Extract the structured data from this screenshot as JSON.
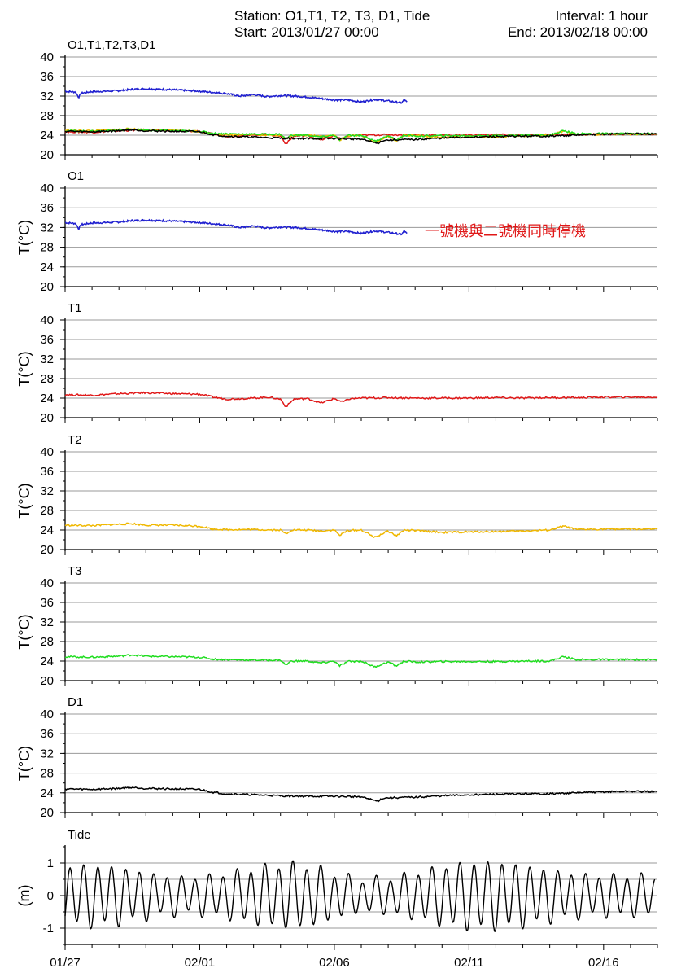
{
  "header": {
    "station": "Station: O1,T1, T2, T3, D1, Tide",
    "interval": "Interval: 1 hour",
    "start": "Start: 2013/01/27 00:00",
    "end": "End: 2013/02/18 00:00"
  },
  "annotation": "一號機與二號機同時停機",
  "x_tick_labels": [
    "01/27",
    "02/01",
    "02/06",
    "02/11",
    "02/16"
  ],
  "x_tick_days": [
    0,
    5,
    10,
    15,
    20
  ],
  "x_range_days": [
    0,
    22
  ],
  "colors": {
    "O1": "#2020d0",
    "T1": "#e01818",
    "T2": "#f0b800",
    "T3": "#20dd20",
    "D1": "#000000",
    "Tide": "#000000",
    "grid": "#9a9a9a",
    "annotation": "#e01818"
  },
  "chart_data": [
    {
      "type": "line",
      "title": "O1,T1,T2,T3,D1",
      "ylabel": "",
      "ylim": [
        20,
        40
      ],
      "yticks": [
        20,
        24,
        28,
        32,
        36,
        40
      ],
      "series": [
        {
          "key": "O1",
          "x": [
            0,
            0.4,
            0.5,
            0.6,
            1,
            2,
            2.5,
            3,
            4,
            5,
            6,
            6.5,
            7,
            7.5,
            8,
            8.5,
            9,
            9.5,
            10,
            10.5,
            11,
            11.5,
            12,
            12.5,
            12.6,
            12.7
          ],
          "y": [
            33,
            32.8,
            31.7,
            32.6,
            32.9,
            33.1,
            33.4,
            33.5,
            33.3,
            33,
            32.5,
            32,
            32.3,
            31.9,
            32.1,
            32,
            31.8,
            31.5,
            31.2,
            31.2,
            30.8,
            31.3,
            31,
            30.6,
            31.3,
            30.7
          ]
        },
        {
          "key": "T1",
          "x": [
            0,
            1,
            2,
            3,
            4,
            5,
            5.5,
            6,
            7,
            7.5,
            8,
            8.2,
            8.5,
            9,
            9.5,
            10,
            10.3,
            10.6,
            11,
            12,
            13,
            14,
            15,
            16,
            17,
            18,
            19,
            20,
            21,
            22
          ],
          "y": [
            24.7,
            24.6,
            24.9,
            25.1,
            24.9,
            24.8,
            24.2,
            23.8,
            24,
            24.2,
            23.8,
            22.2,
            23.8,
            23.9,
            23,
            23.9,
            23.2,
            23.9,
            24,
            24.1,
            24,
            24,
            24,
            24.1,
            24,
            24.1,
            24.1,
            24.2,
            24.2,
            24.2
          ]
        },
        {
          "key": "T2",
          "x": [
            0,
            1,
            2,
            2.5,
            3,
            4,
            5,
            5.5,
            6,
            7,
            8,
            8.2,
            8.4,
            9,
            9.5,
            10,
            10.2,
            10.5,
            11,
            11.5,
            12,
            12.3,
            12.6,
            13,
            14,
            15,
            16,
            17,
            18,
            18.5,
            19,
            20,
            21,
            22
          ],
          "y": [
            25,
            24.9,
            25.2,
            25.3,
            25,
            25,
            24.8,
            24.2,
            24.1,
            24.1,
            24,
            23.2,
            24,
            24,
            23.8,
            24,
            22.9,
            23.9,
            24,
            22.5,
            23.8,
            22.8,
            24,
            23.9,
            23.5,
            23.6,
            23.7,
            23.8,
            24,
            24.8,
            24.1,
            24.2,
            24.2,
            24.2
          ]
        },
        {
          "key": "T3",
          "x": [
            0,
            1,
            2,
            2.5,
            3,
            4,
            5,
            5.5,
            6,
            7,
            8,
            8.2,
            8.4,
            9,
            9.5,
            10,
            10.2,
            10.5,
            11,
            11.5,
            12,
            12.3,
            12.6,
            13,
            14,
            15,
            16,
            17,
            18,
            18.5,
            19,
            20,
            21,
            22
          ],
          "y": [
            24.9,
            24.8,
            25,
            25.3,
            25,
            24.9,
            24.8,
            24.4,
            24.3,
            24.2,
            24.2,
            23.2,
            24,
            24,
            23.6,
            24,
            23,
            23.9,
            24,
            22.8,
            23.8,
            23,
            24,
            23.8,
            23.9,
            23.9,
            23.9,
            24,
            24,
            24.9,
            24.3,
            24.3,
            24.3,
            24.3
          ]
        },
        {
          "key": "D1",
          "x": [
            0,
            1,
            2,
            2.5,
            3,
            4,
            5,
            5.5,
            6,
            7,
            8,
            9,
            10,
            11,
            11.6,
            11.8,
            12,
            13,
            14,
            15,
            16,
            17,
            18,
            19,
            20,
            21,
            22
          ],
          "y": [
            24.8,
            24.7,
            24.9,
            25.1,
            24.9,
            24.8,
            24.7,
            24.1,
            23.8,
            23.6,
            23.4,
            23.3,
            23.3,
            23.2,
            22.3,
            22.9,
            23,
            23.1,
            23.4,
            23.6,
            23.7,
            23.8,
            23.8,
            24,
            24.2,
            24.3,
            24.2
          ]
        }
      ]
    },
    {
      "type": "line",
      "title": "O1",
      "ylabel": "T(°C)",
      "ylim": [
        20,
        40
      ],
      "yticks": [
        20,
        24,
        28,
        32,
        36,
        40
      ],
      "series": [
        {
          "key": "O1",
          "ref": 0
        }
      ]
    },
    {
      "type": "line",
      "title": "T1",
      "ylabel": "T(°C)",
      "ylim": [
        20,
        40
      ],
      "yticks": [
        20,
        24,
        28,
        32,
        36,
        40
      ],
      "series": [
        {
          "key": "T1",
          "ref": 1
        }
      ]
    },
    {
      "type": "line",
      "title": "T2",
      "ylabel": "T(°C)",
      "ylim": [
        20,
        40
      ],
      "yticks": [
        20,
        24,
        28,
        32,
        36,
        40
      ],
      "series": [
        {
          "key": "T2",
          "ref": 2
        }
      ]
    },
    {
      "type": "line",
      "title": "T3",
      "ylabel": "T(°C)",
      "ylim": [
        20,
        40
      ],
      "yticks": [
        20,
        24,
        28,
        32,
        36,
        40
      ],
      "series": [
        {
          "key": "T3",
          "ref": 3
        }
      ]
    },
    {
      "type": "line",
      "title": "D1",
      "ylabel": "T(°C)",
      "ylim": [
        20,
        40
      ],
      "yticks": [
        20,
        24,
        28,
        32,
        36,
        40
      ],
      "series": [
        {
          "key": "D1",
          "ref": 4
        }
      ]
    },
    {
      "type": "line",
      "title": "Tide",
      "ylabel": "(m)",
      "ylim": [
        -1.5,
        1.5
      ],
      "yticks": [
        -1,
        0,
        1
      ],
      "series": [
        {
          "key": "Tide",
          "tide_model": {
            "M2_period_days": 0.5175,
            "amplitude_peaks": [
              0.9,
              0.55,
              0.95,
              0.5,
              1.0,
              0.6
            ],
            "amplitude_peak_days": [
              1,
              4.5,
              8.5,
              11.2,
              15.5,
              20
            ]
          },
          "note_values": "semi-diurnal tide, amplitude approx 0.3–1.0 m"
        }
      ]
    }
  ]
}
